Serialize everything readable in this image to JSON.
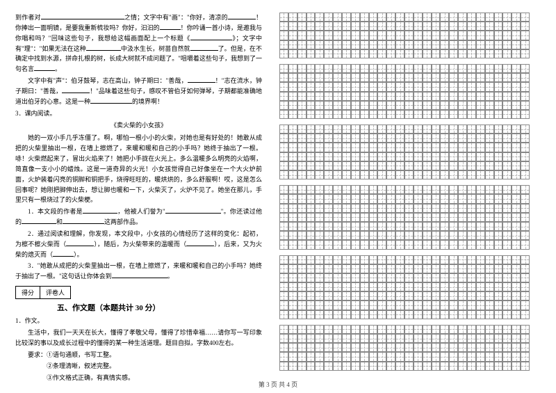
{
  "leftColumn": {
    "p1_a": "到作者对",
    "p1_b": "之情；文字中有\"画\"：\"你好，清凉的",
    "p1_c": "！你捧出一面明镜，是要我重新梳妆吗？你好，汩汩的",
    "p1_d": "！你吟诵一首小诗，是邀我与你唱和吗？\"回味这些句子，我想给这幅画面配上一个标题《",
    "p1_e": "》；文字中有\"理\"：\"如果无法在这种",
    "p1_f": "中汲水生长，树苗自然就",
    "p1_g": "了。但是，在不确定中找到水源，拼命扎根的树，长成大树就不成问题了。\"咀嚼着这些句子，我想到了一句名言",
    "p2_a": "文字中有\"声\"：伯牙鼓琴，志在高山，钟子期曰：\"善哉，",
    "p2_b": "！\"志在流水，钟子期曰：\"善哉，",
    "p2_c": "！\"品味着这些句子，感叹不管伯牙如何弹琴，子期都能准确地道出伯牙的心意。这是一种",
    "p2_d": "的境界啊！",
    "item3": "3．课内阅读。",
    "storyTitle": "《卖火柴的小女孩》",
    "story_p1": "她的一双小手几乎冻僵了。啊，哪怕一根小小的火柴，对她也是有好处的！她敢从成把的火柴里抽出一根，在墙上擦燃了，来暖和暖和自己的小手吗？她终于抽出了一根。哧！火柴燃起来了，冒出火焰来了！她把小手拢在火光上。多么温暖多么明亮的火焰啊，简直像一支小小的蜡烛。这是一道奇异的火光！小女孩觉得自己好像坐在一个大火炉前面，火炉装着闪亮的铜脚和铜把手，烧得旺旺的，暖烘烘的，多么舒服啊！哎，这是怎么回事呢？她刚把脚伸出去，想让脚也暖和一下，火柴灭了，火炉不见了。她坐在那儿，手里只有一根烧过了的火柴梗。",
    "q1_a": "1．本文段的作者是",
    "q1_b": "，他被人们誉为\"",
    "q1_c": "\"。你还读过他的",
    "q1_d": "和",
    "q1_e": "这两部作品。",
    "q2_a": "2．通过阅读和理解，你发现，本文段中，小女孩的心情经历了这样的变化：起初，为檫不檫火柴而（",
    "q2_b": "），随后，为火柴带来的温暖而（",
    "q2_c": "），后来，又为火柴的熄灭而（",
    "q2_d": "）。",
    "q3_a": "3．\"她敢从成把的火柴里抽出一根，在墙上擦燃了，来暖和暖和自己的小手吗？她终于抽出了一根。\"这句话让你体会到",
    "q3_b": "。",
    "scoreLabel1": "得分",
    "scoreLabel2": "评卷人",
    "sectionTitle": "五、作文题（本题共计 30 分）",
    "wItem": "1．作文。",
    "w_p1": "生活中，我们一天天在长大，懂得了孝敬父母，懂得了珍惜幸福……请你写一写印象比较深的事以及成长过程中的懂得的某一种生活道理。题目自拟，字数400左右。",
    "w_req": "要求：①语句通顺，书写工整。",
    "w_req2": "②条理清晰，叙述完整。",
    "w_req3": "③作文格式正确，有真情实感。"
  },
  "grid": {
    "blocks": [
      5,
      6,
      6,
      7,
      7,
      5
    ],
    "cols": 28,
    "cellSize": 13.2,
    "borderColor": "#888",
    "dashColor": "#bbb",
    "gapBetweenBlocks": 8
  },
  "footer": "第 3 页 共 4 页",
  "style": {
    "pageWidth": 800,
    "pageHeight": 565,
    "background": "#ffffff",
    "fontFamily": "SimSun",
    "baseFontSize": 9,
    "lineHeight": 1.65,
    "textColor": "#000000"
  }
}
